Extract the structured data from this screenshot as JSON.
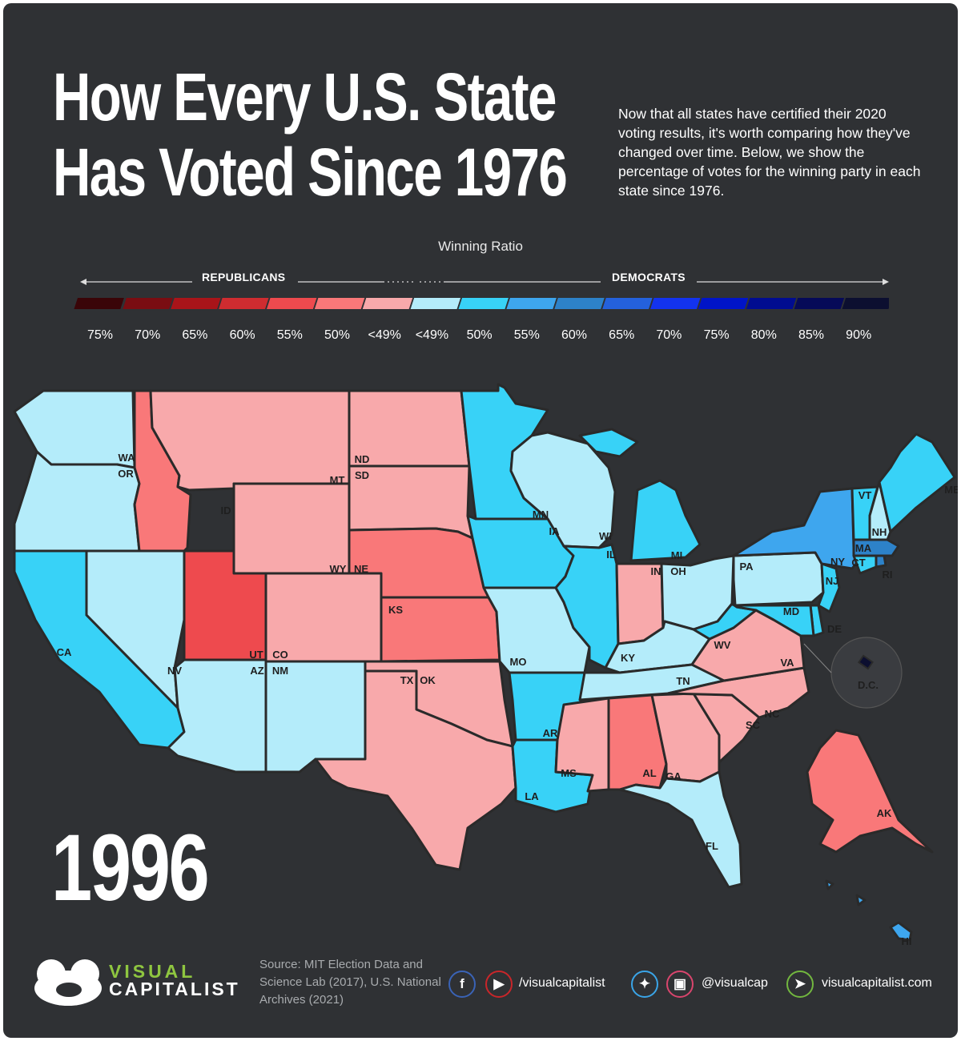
{
  "header": {
    "title_line1": "How Every U.S. State",
    "title_line2": "Has Voted Since 1976",
    "intro": "Now that all states have certified their 2020 voting results, it's worth comparing how they've changed over time. Below, we show the percentage of votes for the winning party in each state since 1976."
  },
  "legend": {
    "title": "Winning Ratio",
    "left_label": "REPUBLICANS",
    "right_label": "DEMOCRATS",
    "ticks": [
      "75%",
      "70%",
      "65%",
      "60%",
      "55%",
      "50%",
      "<49%",
      "<49%",
      "50%",
      "55%",
      "60%",
      "65%",
      "70%",
      "75%",
      "80%",
      "85%",
      "90%"
    ],
    "colors": [
      "#3a0508",
      "#7a0d12",
      "#a91419",
      "#cf2c30",
      "#ee4a4e",
      "#f97879",
      "#f8a9ab",
      "#b4ecfa",
      "#38d2f7",
      "#3ea6ee",
      "#2d82c9",
      "#2461dc",
      "#1333ee",
      "#0014c8",
      "#000c90",
      "#060a58",
      "#0c0f30"
    ]
  },
  "year": "1996",
  "states": [
    {
      "abbr": "WA",
      "color": "#b4ecfa"
    },
    {
      "abbr": "OR",
      "color": "#b4ecfa"
    },
    {
      "abbr": "CA",
      "color": "#38d2f7"
    },
    {
      "abbr": "NV",
      "color": "#b4ecfa"
    },
    {
      "abbr": "ID",
      "color": "#f97879"
    },
    {
      "abbr": "MT",
      "color": "#f8a9ab"
    },
    {
      "abbr": "WY",
      "color": "#f8a9ab"
    },
    {
      "abbr": "UT",
      "color": "#ee4a4e"
    },
    {
      "abbr": "CO",
      "color": "#f8a9ab"
    },
    {
      "abbr": "AZ",
      "color": "#b4ecfa"
    },
    {
      "abbr": "NM",
      "color": "#b4ecfa"
    },
    {
      "abbr": "ND",
      "color": "#f8a9ab"
    },
    {
      "abbr": "SD",
      "color": "#f8a9ab"
    },
    {
      "abbr": "NE",
      "color": "#f97879"
    },
    {
      "abbr": "KS",
      "color": "#f97879"
    },
    {
      "abbr": "OK",
      "color": "#f8a9ab"
    },
    {
      "abbr": "TX",
      "color": "#f8a9ab"
    },
    {
      "abbr": "MN",
      "color": "#38d2f7"
    },
    {
      "abbr": "IA",
      "color": "#38d2f7"
    },
    {
      "abbr": "MO",
      "color": "#b4ecfa"
    },
    {
      "abbr": "AR",
      "color": "#38d2f7"
    },
    {
      "abbr": "LA",
      "color": "#38d2f7"
    },
    {
      "abbr": "WI",
      "color": "#b4ecfa"
    },
    {
      "abbr": "IL",
      "color": "#38d2f7"
    },
    {
      "abbr": "MI",
      "color": "#38d2f7"
    },
    {
      "abbr": "IN",
      "color": "#f8a9ab"
    },
    {
      "abbr": "OH",
      "color": "#b4ecfa"
    },
    {
      "abbr": "KY",
      "color": "#b4ecfa"
    },
    {
      "abbr": "TN",
      "color": "#b4ecfa"
    },
    {
      "abbr": "MS",
      "color": "#f8a9ab"
    },
    {
      "abbr": "AL",
      "color": "#f97879"
    },
    {
      "abbr": "GA",
      "color": "#f8a9ab"
    },
    {
      "abbr": "FL",
      "color": "#b4ecfa"
    },
    {
      "abbr": "SC",
      "color": "#f8a9ab"
    },
    {
      "abbr": "NC",
      "color": "#f8a9ab"
    },
    {
      "abbr": "VA",
      "color": "#f8a9ab"
    },
    {
      "abbr": "WV",
      "color": "#38d2f7"
    },
    {
      "abbr": "PA",
      "color": "#b4ecfa"
    },
    {
      "abbr": "NY",
      "color": "#3ea6ee"
    },
    {
      "abbr": "VT",
      "color": "#38d2f7"
    },
    {
      "abbr": "NH",
      "color": "#b4ecfa"
    },
    {
      "abbr": "ME",
      "color": "#38d2f7"
    },
    {
      "abbr": "MA",
      "color": "#2d82c9"
    },
    {
      "abbr": "RI",
      "color": "#2d82c9"
    },
    {
      "abbr": "CT",
      "color": "#38d2f7"
    },
    {
      "abbr": "NJ",
      "color": "#38d2f7"
    },
    {
      "abbr": "DE",
      "color": "#38d2f7"
    },
    {
      "abbr": "MD",
      "color": "#38d2f7"
    },
    {
      "abbr": "D.C.",
      "color": "#0c0f30"
    },
    {
      "abbr": "AK",
      "color": "#f97879"
    },
    {
      "abbr": "HI",
      "color": "#3ea6ee"
    }
  ],
  "footer": {
    "brand_line1": "VISUAL",
    "brand_line2": "CAPITALIST",
    "source": "Source: MIT Election Data and Science Lab (2017), U.S. National Archives (2021)",
    "handle1": "/visualcapitalist",
    "handle2": "@visualcap",
    "website": "visualcapitalist.com"
  }
}
